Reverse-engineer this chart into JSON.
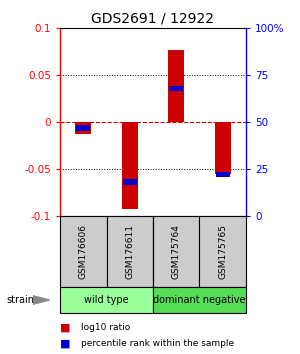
{
  "title": "GDS2691 / 12922",
  "samples": [
    "GSM176606",
    "GSM176611",
    "GSM175764",
    "GSM175765"
  ],
  "log10_ratio": [
    -0.013,
    -0.093,
    0.077,
    -0.055
  ],
  "percentile_rank": [
    47,
    18,
    68,
    22
  ],
  "ylim": [
    -0.1,
    0.1
  ],
  "yticks_left": [
    -0.1,
    -0.05,
    0,
    0.05,
    0.1
  ],
  "yticks_right": [
    0,
    25,
    50,
    75,
    100
  ],
  "bar_color": "#cc0000",
  "blue_color": "#0000cc",
  "zero_line_color": "#cc0000",
  "groups": [
    {
      "name": "wild type",
      "samples": [
        0,
        1
      ],
      "color": "#99ff99"
    },
    {
      "name": "dominant negative",
      "samples": [
        2,
        3
      ],
      "color": "#55dd55"
    }
  ],
  "strain_label": "strain",
  "legend_red": "log10 ratio",
  "legend_blue": "percentile rank within the sample",
  "title_fontsize": 10,
  "tick_fontsize": 7.5,
  "sample_fontsize": 6.5,
  "group_fontsize": 7,
  "legend_fontsize": 6.5
}
